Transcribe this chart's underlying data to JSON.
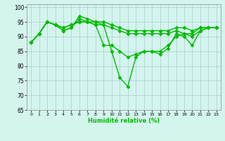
{
  "title": "",
  "xlabel": "Humidité relative (%)",
  "ylabel": "",
  "background_color": "#d4f5ee",
  "grid_color": "#aacccc",
  "line_color": "#00bb00",
  "marker": "D",
  "markersize": 2.5,
  "linewidth": 1.0,
  "xlim": [
    -0.5,
    23.5
  ],
  "ylim": [
    65,
    101
  ],
  "yticks": [
    65,
    70,
    75,
    80,
    85,
    90,
    95,
    100
  ],
  "xticks": [
    0,
    1,
    2,
    3,
    4,
    5,
    6,
    7,
    8,
    9,
    10,
    11,
    12,
    13,
    14,
    15,
    16,
    17,
    18,
    19,
    20,
    21,
    22,
    23
  ],
  "series": [
    [
      88,
      91,
      95,
      94,
      92,
      93,
      97,
      96,
      95,
      94,
      85,
      76,
      73,
      83,
      85,
      85,
      84,
      86,
      91,
      90,
      87,
      92,
      93,
      93
    ],
    [
      88,
      91,
      95,
      94,
      92,
      93,
      96,
      95,
      94,
      87,
      87,
      85,
      83,
      84,
      85,
      85,
      85,
      87,
      90,
      91,
      90,
      92,
      93,
      93
    ],
    [
      88,
      91,
      95,
      94,
      93,
      94,
      95,
      95,
      94,
      94,
      93,
      92,
      91,
      91,
      91,
      91,
      91,
      91,
      92,
      91,
      91,
      93,
      93,
      93
    ],
    [
      88,
      91,
      95,
      94,
      93,
      94,
      95,
      95,
      95,
      95,
      94,
      93,
      92,
      92,
      92,
      92,
      92,
      92,
      93,
      93,
      92,
      93,
      93,
      93
    ]
  ]
}
